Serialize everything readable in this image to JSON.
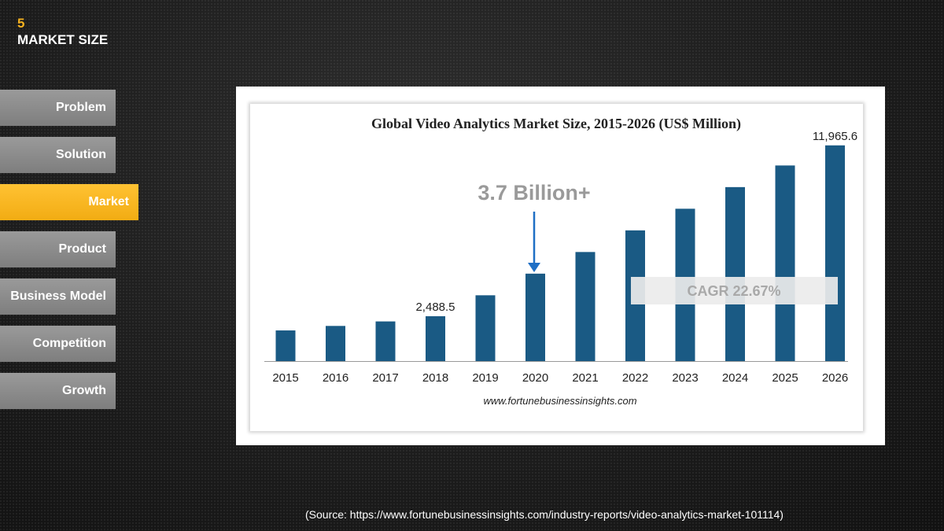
{
  "header": {
    "slide_number": "5",
    "title": "MARKET SIZE"
  },
  "nav": {
    "items": [
      {
        "label": "Problem",
        "active": false
      },
      {
        "label": "Solution",
        "active": false
      },
      {
        "label": "Market",
        "active": true
      },
      {
        "label": "Product",
        "active": false
      },
      {
        "label": "Business Model",
        "active": false
      },
      {
        "label": "Competition",
        "active": false
      },
      {
        "label": "Growth",
        "active": false
      }
    ]
  },
  "colors": {
    "accent": "#f4b120",
    "bar": "#1a5a84",
    "arrow": "#1f6fc5"
  },
  "chart_data": {
    "type": "bar",
    "title": "Global Video Analytics Market Size, 2015-2026 (US$ Million)",
    "xlabel": "",
    "ylabel": "",
    "categories": [
      "2015",
      "2016",
      "2017",
      "2018",
      "2019",
      "2020",
      "2021",
      "2022",
      "2023",
      "2024",
      "2025",
      "2026"
    ],
    "values": [
      1700,
      1950,
      2200,
      2488.5,
      3650,
      4850,
      6050,
      7250,
      8450,
      9650,
      10850,
      11965.6
    ],
    "data_labels": [
      {
        "category": "2018",
        "text": "2,488.5"
      },
      {
        "category": "2026",
        "text": "11,965.6"
      }
    ],
    "ylim": [
      0,
      12000
    ],
    "grid": false,
    "legend": "none",
    "annotations": {
      "callout": "3.7 Billion+",
      "callout_target": "2020",
      "cagr": "CAGR 22.67%",
      "website": "www.fortunebusinessinsights.com"
    }
  },
  "source_text": "(Source: https://www.fortunebusinessinsights.com/industry-reports/video-analytics-market-101114)"
}
